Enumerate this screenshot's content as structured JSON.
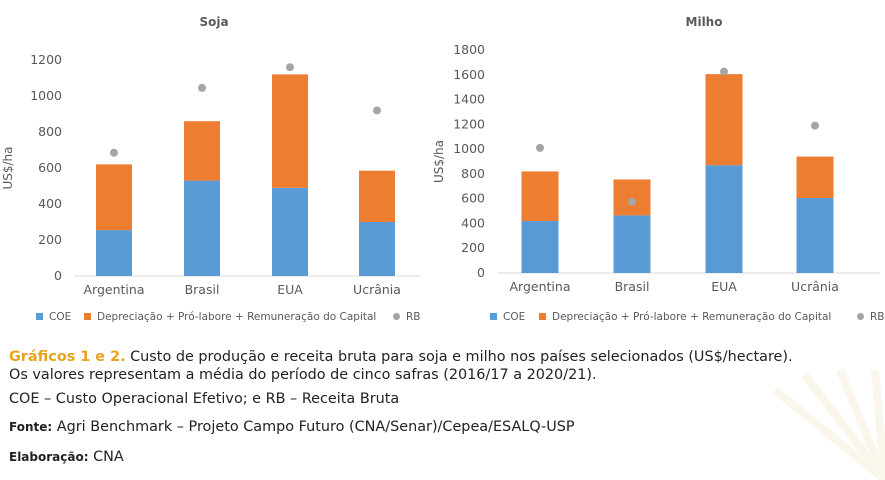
{
  "chart_data": [
    {
      "type": "bar",
      "stacked": true,
      "title": "Soja",
      "ylabel": "US$/ha",
      "ylim": [
        0,
        1200
      ],
      "yticks": [
        0,
        200,
        400,
        600,
        800,
        1000,
        1200
      ],
      "categories": [
        "Argentina",
        "Brasil",
        "EUA",
        "Ucrânia"
      ],
      "series": [
        {
          "name": "COE",
          "kind": "bar",
          "color": "#5b9bd5",
          "values": [
            255,
            530,
            490,
            300
          ]
        },
        {
          "name": "Depreciação + Pró-labore + Remuneração do Capital",
          "kind": "bar",
          "color": "#ed7d31",
          "values": [
            365,
            330,
            630,
            285
          ]
        },
        {
          "name": "RB",
          "kind": "point",
          "color": "#a5a5a5",
          "values": [
            685,
            1045,
            1160,
            920
          ]
        }
      ],
      "legend": "bottom",
      "grid": false
    },
    {
      "type": "bar",
      "stacked": true,
      "title": "Milho",
      "ylabel": "US$/ha",
      "ylim": [
        0,
        1800
      ],
      "yticks": [
        0,
        200,
        400,
        600,
        800,
        1000,
        1200,
        1400,
        1600,
        1800
      ],
      "categories": [
        "Argentina",
        "Brasil",
        "EUA",
        "Ucrânia"
      ],
      "series": [
        {
          "name": "COE",
          "kind": "bar",
          "color": "#5b9bd5",
          "values": [
            420,
            465,
            870,
            605
          ]
        },
        {
          "name": "Depreciação + Pró-labore + Remuneração do Capital",
          "kind": "bar",
          "color": "#ed7d31",
          "values": [
            400,
            290,
            735,
            335
          ]
        },
        {
          "name": "RB",
          "kind": "point",
          "color": "#a5a5a5",
          "values": [
            1010,
            575,
            1625,
            1190
          ]
        }
      ],
      "legend": "bottom",
      "grid": false
    }
  ],
  "caption": {
    "title": "Gráficos 1 e 2.",
    "text1": " Custo de produção e receita bruta para soja e milho nos países selecionados (US$/hectare).",
    "text2": "Os valores representam a média do período de cinco safras (2016/17 a 2020/21).",
    "abbrev": "COE – Custo Operacional Efetivo; e RB – Receita Bruta",
    "source_label": "Fonte:",
    "source_text": " Agri Benchmark – Projeto Campo Futuro (CNA/Senar)/Cepea/ESALQ-USP",
    "credit_label": "Elaboração:",
    "credit_text": " CNA"
  }
}
